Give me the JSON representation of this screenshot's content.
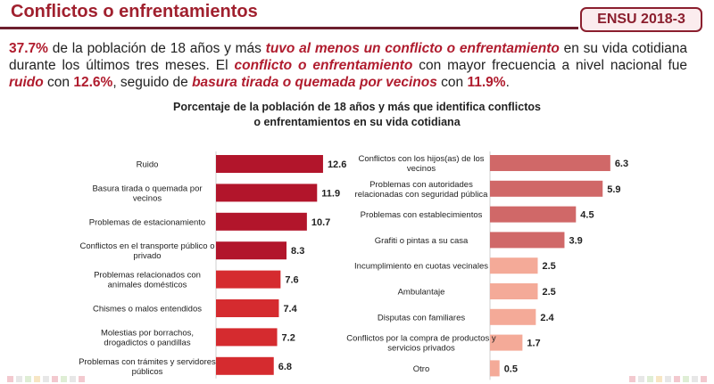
{
  "header": {
    "title": "Conflictos o enfrentamientos",
    "badge": "ENSU 2018-3"
  },
  "summary": {
    "pct_total": "37.7%",
    "t1": " de la población de 18 años y más ",
    "h1": "tuvo al menos un conflicto o enfrentamiento",
    "t2": " en su vida cotidiana durante los últimos tres meses. El ",
    "h2": "conflicto o enfrentamiento",
    "t3": " con mayor frecuencia a nivel nacional fue ",
    "h3": "ruido",
    "t4": " con ",
    "pct_ruido": "12.6%",
    "t5": ", seguido de ",
    "h4": "basura tirada o quemada por vecinos",
    "t6": " con ",
    "pct_basura": "11.9%",
    "t7": "."
  },
  "chart_title": {
    "line1": "Porcentaje de la población de 18 años y más que identifica conflictos",
    "line2": "o enfrentamientos en su vida cotidiana"
  },
  "colors": {
    "dark_red": "#b2152b",
    "red": "#d52b2f",
    "rose": "#d06868",
    "salmon": "#f4aa98",
    "text_red": "#b01c2e"
  },
  "chart_data": [
    {
      "type": "bar",
      "orientation": "horizontal",
      "categories": [
        "Ruido",
        "Basura tirada o quemada por vecinos",
        "Problemas de estacionamiento",
        "Conflictos en el transporte público o privado",
        "Problemas relacionados con animales domésticos",
        "Chismes o malos entendidos",
        "Molestias por borrachos, drogadictos o pandillas",
        "Problemas con trámites y servidores públicos"
      ],
      "label_lines": [
        [
          "Ruido"
        ],
        [
          "Basura tirada o quemada por",
          "vecinos"
        ],
        [
          "Problemas de estacionamiento"
        ],
        [
          "Conflictos en el transporte público o",
          "privado"
        ],
        [
          "Problemas relacionados con",
          "animales domésticos"
        ],
        [
          "Chismes o malos entendidos"
        ],
        [
          "Molestias por borrachos,",
          "drogadictos o pandillas"
        ],
        [
          "Problemas con trámites y servidores",
          "públicos"
        ]
      ],
      "values": [
        12.6,
        11.9,
        10.7,
        8.3,
        7.6,
        7.4,
        7.2,
        6.8
      ],
      "value_labels": [
        "12.6",
        "11.9",
        "10.7",
        "8.3",
        "7.6",
        "7.4",
        "7.2",
        "6.8"
      ],
      "bar_colors": [
        "#b2152b",
        "#b2152b",
        "#b2152b",
        "#b2152b",
        "#d52b2f",
        "#d52b2f",
        "#d52b2f",
        "#d52b2f"
      ]
    },
    {
      "type": "bar",
      "orientation": "horizontal",
      "categories": [
        "Conflictos con los hijos(as) de los vecinos",
        "Problemas con autoridades relacionadas con seguridad pública",
        "Problemas con establecimientos",
        "Grafiti o pintas a su casa",
        "Incumplimiento en cuotas vecinales",
        "Ambulantaje",
        "Disputas con familiares",
        "Conflictos por la compra de productos y servicios privados",
        "Otro"
      ],
      "label_lines": [
        [
          "Conflictos con los hijos(as) de los",
          "vecinos"
        ],
        [
          "Problemas con autoridades",
          "relacionadas con seguridad pública"
        ],
        [
          "Problemas con establecimientos"
        ],
        [
          "Grafiti o pintas a su casa"
        ],
        [
          "Incumplimiento en cuotas vecinales"
        ],
        [
          "Ambulantaje"
        ],
        [
          "Disputas con familiares"
        ],
        [
          "Conflictos por la compra de productos y",
          "servicios privados"
        ],
        [
          "Otro"
        ]
      ],
      "values": [
        6.3,
        5.9,
        4.5,
        3.9,
        2.5,
        2.5,
        2.4,
        1.7,
        0.5
      ],
      "value_labels": [
        "6.3",
        "5.9",
        "4.5",
        "3.9",
        "2.5",
        "2.5",
        "2.4",
        "1.7",
        "0.5"
      ],
      "bar_colors": [
        "#d06868",
        "#d06868",
        "#d06868",
        "#d06868",
        "#f4aa98",
        "#f4aa98",
        "#f4aa98",
        "#f4aa98",
        "#f4aa98"
      ]
    }
  ]
}
